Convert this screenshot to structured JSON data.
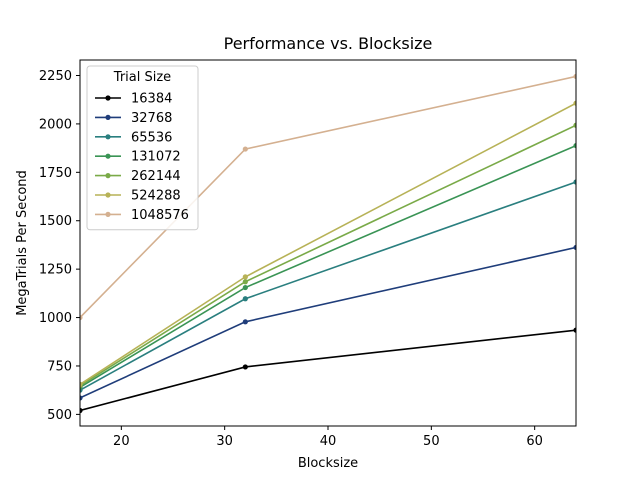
{
  "chart_data": {
    "type": "line",
    "title": "Performance vs. Blocksize",
    "xlabel": "Blocksize",
    "ylabel": "MegaTrials Per Second",
    "x": [
      16,
      32,
      64
    ],
    "xlim": [
      16,
      64
    ],
    "ylim": [
      440,
      2330
    ],
    "xticks": [
      20,
      30,
      40,
      50,
      60
    ],
    "yticks": [
      500,
      750,
      1000,
      1250,
      1500,
      1750,
      2000,
      2250
    ],
    "grid": false,
    "legend": {
      "title": "Trial Size",
      "placement": "top-left"
    },
    "series": [
      {
        "name": "16384",
        "color": "#000000",
        "values": [
          520,
          745,
          935
        ]
      },
      {
        "name": "32768",
        "color": "#1f3d7a",
        "values": [
          585,
          978,
          1362
        ]
      },
      {
        "name": "65536",
        "color": "#2a7f7f",
        "values": [
          625,
          1097,
          1700
        ]
      },
      {
        "name": "131072",
        "color": "#3a9455",
        "values": [
          640,
          1155,
          1888
        ]
      },
      {
        "name": "262144",
        "color": "#7aaa48",
        "values": [
          648,
          1185,
          1993
        ]
      },
      {
        "name": "524288",
        "color": "#b7b257",
        "values": [
          655,
          1210,
          2107
        ]
      },
      {
        "name": "1048576",
        "color": "#d4b090",
        "values": [
          1000,
          1870,
          2245
        ]
      }
    ]
  }
}
